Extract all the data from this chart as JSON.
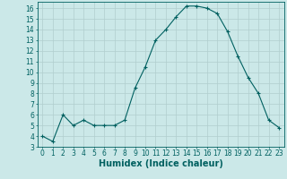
{
  "x": [
    0,
    1,
    2,
    3,
    4,
    5,
    6,
    7,
    8,
    9,
    10,
    11,
    12,
    13,
    14,
    15,
    16,
    17,
    18,
    19,
    20,
    21,
    22,
    23
  ],
  "y": [
    4,
    3.5,
    6,
    5,
    5.5,
    5,
    5,
    5,
    5.5,
    8.5,
    10.5,
    13,
    14,
    15.2,
    16.2,
    16.2,
    16,
    15.5,
    13.8,
    11.5,
    9.5,
    8,
    5.5,
    4.8
  ],
  "line_color": "#006060",
  "marker": "+",
  "marker_size": 3,
  "marker_lw": 0.8,
  "line_width": 0.8,
  "bg_plot": "#cbe8e8",
  "grid_color": "#b0cece",
  "xlabel": "Humidex (Indice chaleur)",
  "xlabel_fontsize": 7,
  "xlabel_color": "#006060",
  "ylabel_ticks": [
    3,
    4,
    5,
    6,
    7,
    8,
    9,
    10,
    11,
    12,
    13,
    14,
    15,
    16
  ],
  "xlim": [
    -0.5,
    23.5
  ],
  "ylim": [
    3,
    16.6
  ],
  "tick_fontsize": 5.5,
  "tick_color": "#006060",
  "fig_bg": "#cbe8e8"
}
